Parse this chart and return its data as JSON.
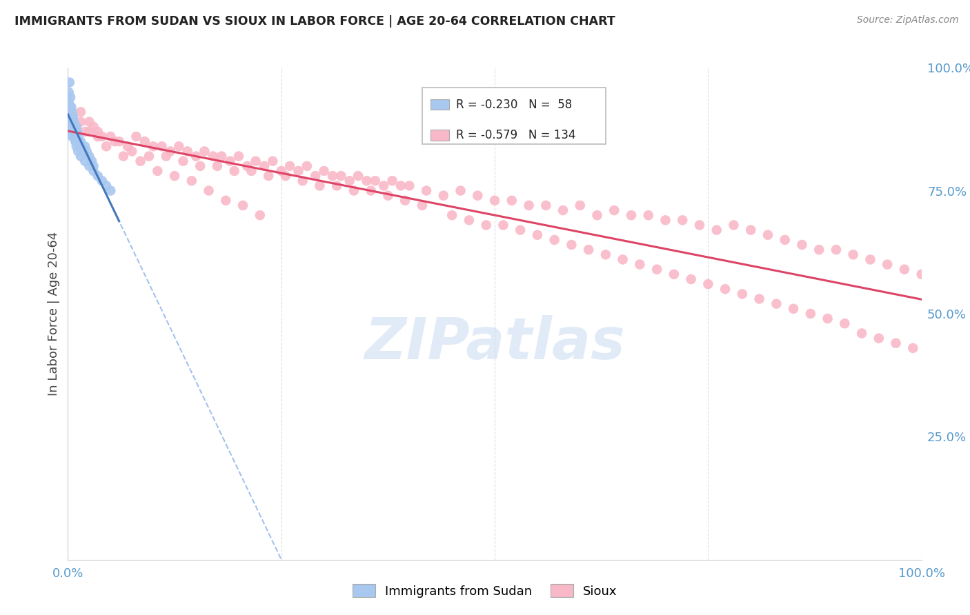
{
  "title": "IMMIGRANTS FROM SUDAN VS SIOUX IN LABOR FORCE | AGE 20-64 CORRELATION CHART",
  "source": "Source: ZipAtlas.com",
  "ylabel": "In Labor Force | Age 20-64",
  "watermark": "ZIPatlas",
  "sudan_R": -0.23,
  "sudan_N": 58,
  "sioux_R": -0.579,
  "sioux_N": 134,
  "sudan_color": "#a8c8f0",
  "sudan_edge": "#7aaad0",
  "sioux_color": "#f9b8c8",
  "sioux_edge": "#e888a0",
  "trendline_sudan_color": "#4477bb",
  "trendline_sioux_color": "#dd4466",
  "trendline_sudan_dashed_color": "#99bbee",
  "background_color": "#ffffff",
  "grid_color": "#dddddd",
  "title_color": "#222222",
  "right_axis_label_color": "#5599cc",
  "bottom_axis_label_color": "#5599cc",
  "sudan_scatter_x": [
    0.001,
    0.001,
    0.002,
    0.002,
    0.002,
    0.003,
    0.003,
    0.003,
    0.003,
    0.004,
    0.004,
    0.004,
    0.005,
    0.005,
    0.005,
    0.005,
    0.006,
    0.006,
    0.006,
    0.007,
    0.007,
    0.007,
    0.008,
    0.008,
    0.009,
    0.009,
    0.01,
    0.01,
    0.011,
    0.012,
    0.013,
    0.014,
    0.015,
    0.016,
    0.018,
    0.02,
    0.022,
    0.025,
    0.028,
    0.03,
    0.002,
    0.003,
    0.004,
    0.005,
    0.006,
    0.007,
    0.008,
    0.009,
    0.01,
    0.012,
    0.015,
    0.02,
    0.025,
    0.03,
    0.035,
    0.04,
    0.045,
    0.05
  ],
  "sudan_scatter_y": [
    0.95,
    0.93,
    0.97,
    0.92,
    0.9,
    0.91,
    0.89,
    0.94,
    0.88,
    0.92,
    0.9,
    0.87,
    0.91,
    0.89,
    0.88,
    0.86,
    0.9,
    0.88,
    0.87,
    0.89,
    0.87,
    0.86,
    0.88,
    0.86,
    0.87,
    0.85,
    0.88,
    0.86,
    0.87,
    0.86,
    0.85,
    0.84,
    0.85,
    0.84,
    0.83,
    0.84,
    0.83,
    0.82,
    0.81,
    0.8,
    0.88,
    0.87,
    0.89,
    0.9,
    0.88,
    0.87,
    0.86,
    0.85,
    0.84,
    0.83,
    0.82,
    0.81,
    0.8,
    0.79,
    0.78,
    0.77,
    0.76,
    0.75
  ],
  "sioux_scatter_x": [
    0.005,
    0.01,
    0.015,
    0.02,
    0.025,
    0.03,
    0.035,
    0.04,
    0.05,
    0.06,
    0.07,
    0.08,
    0.09,
    0.1,
    0.11,
    0.12,
    0.13,
    0.14,
    0.15,
    0.16,
    0.17,
    0.18,
    0.19,
    0.2,
    0.21,
    0.22,
    0.23,
    0.24,
    0.25,
    0.26,
    0.27,
    0.28,
    0.29,
    0.3,
    0.31,
    0.32,
    0.33,
    0.34,
    0.35,
    0.36,
    0.37,
    0.38,
    0.39,
    0.4,
    0.42,
    0.44,
    0.46,
    0.48,
    0.5,
    0.52,
    0.54,
    0.56,
    0.58,
    0.6,
    0.62,
    0.64,
    0.66,
    0.68,
    0.7,
    0.72,
    0.74,
    0.76,
    0.78,
    0.8,
    0.82,
    0.84,
    0.86,
    0.88,
    0.9,
    0.92,
    0.94,
    0.96,
    0.98,
    1.0,
    0.015,
    0.025,
    0.035,
    0.055,
    0.075,
    0.095,
    0.115,
    0.135,
    0.155,
    0.175,
    0.195,
    0.215,
    0.235,
    0.255,
    0.275,
    0.295,
    0.315,
    0.335,
    0.355,
    0.375,
    0.395,
    0.415,
    0.45,
    0.47,
    0.49,
    0.51,
    0.53,
    0.55,
    0.57,
    0.59,
    0.61,
    0.63,
    0.65,
    0.67,
    0.69,
    0.71,
    0.73,
    0.75,
    0.77,
    0.79,
    0.81,
    0.83,
    0.85,
    0.87,
    0.89,
    0.91,
    0.93,
    0.95,
    0.97,
    0.99,
    0.045,
    0.065,
    0.085,
    0.105,
    0.125,
    0.145,
    0.165,
    0.185,
    0.205,
    0.225
  ],
  "sioux_scatter_y": [
    0.9,
    0.88,
    0.91,
    0.87,
    0.89,
    0.88,
    0.87,
    0.86,
    0.86,
    0.85,
    0.84,
    0.86,
    0.85,
    0.84,
    0.84,
    0.83,
    0.84,
    0.83,
    0.82,
    0.83,
    0.82,
    0.82,
    0.81,
    0.82,
    0.8,
    0.81,
    0.8,
    0.81,
    0.79,
    0.8,
    0.79,
    0.8,
    0.78,
    0.79,
    0.78,
    0.78,
    0.77,
    0.78,
    0.77,
    0.77,
    0.76,
    0.77,
    0.76,
    0.76,
    0.75,
    0.74,
    0.75,
    0.74,
    0.73,
    0.73,
    0.72,
    0.72,
    0.71,
    0.72,
    0.7,
    0.71,
    0.7,
    0.7,
    0.69,
    0.69,
    0.68,
    0.67,
    0.68,
    0.67,
    0.66,
    0.65,
    0.64,
    0.63,
    0.63,
    0.62,
    0.61,
    0.6,
    0.59,
    0.58,
    0.89,
    0.87,
    0.86,
    0.85,
    0.83,
    0.82,
    0.82,
    0.81,
    0.8,
    0.8,
    0.79,
    0.79,
    0.78,
    0.78,
    0.77,
    0.76,
    0.76,
    0.75,
    0.75,
    0.74,
    0.73,
    0.72,
    0.7,
    0.69,
    0.68,
    0.68,
    0.67,
    0.66,
    0.65,
    0.64,
    0.63,
    0.62,
    0.61,
    0.6,
    0.59,
    0.58,
    0.57,
    0.56,
    0.55,
    0.54,
    0.53,
    0.52,
    0.51,
    0.5,
    0.49,
    0.48,
    0.46,
    0.45,
    0.44,
    0.43,
    0.84,
    0.82,
    0.81,
    0.79,
    0.78,
    0.77,
    0.75,
    0.73,
    0.72,
    0.7
  ]
}
